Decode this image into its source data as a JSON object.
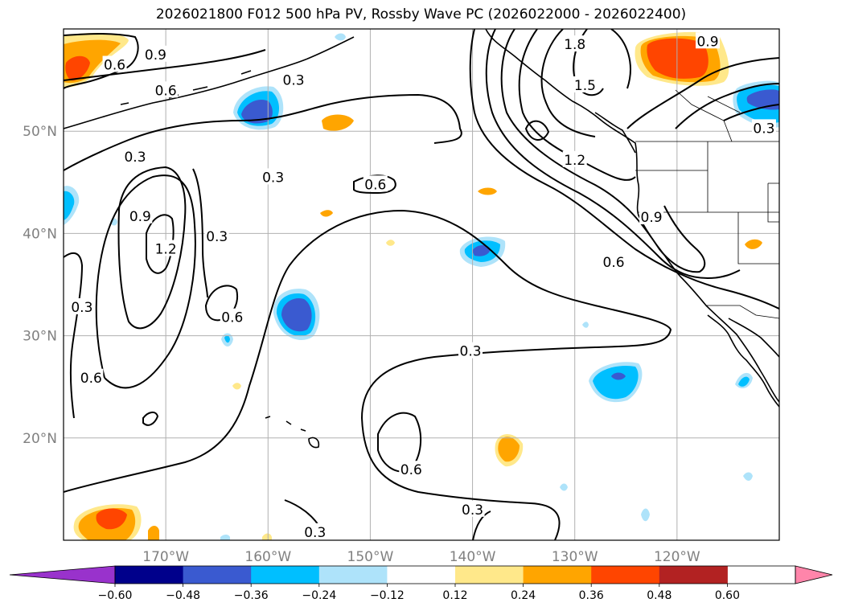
{
  "title": "2026021800 F012 500 hPa PV, Rossby Wave PC (2026022000 - 2026022400)",
  "map": {
    "lon_range": [
      -180,
      -110
    ],
    "lat_range": [
      10,
      60
    ],
    "projection": "PlateCarree",
    "gridlines": true,
    "lat_ticks": [
      {
        "value": 20,
        "label": "20°N"
      },
      {
        "value": 30,
        "label": "30°N"
      },
      {
        "value": 40,
        "label": "40°N"
      },
      {
        "value": 50,
        "label": "50°N"
      }
    ],
    "lon_ticks": [
      {
        "value": -170,
        "label": "170°W"
      },
      {
        "value": -160,
        "label": "160°W"
      },
      {
        "value": -150,
        "label": "150°W"
      },
      {
        "value": -140,
        "label": "140°W"
      },
      {
        "value": -130,
        "label": "130°W"
      },
      {
        "value": -120,
        "label": "120°W"
      }
    ],
    "contour_labels": [
      {
        "text": "0.6",
        "lon": -175,
        "lat": 56.5
      },
      {
        "text": "0.9",
        "lon": -171,
        "lat": 57.5
      },
      {
        "text": "0.6",
        "lon": -170,
        "lat": 54
      },
      {
        "text": "0.3",
        "lon": -157.5,
        "lat": 55
      },
      {
        "text": "1.8",
        "lon": -130,
        "lat": 58.5
      },
      {
        "text": "0.9",
        "lon": -117,
        "lat": 58.8
      },
      {
        "text": "1.5",
        "lon": -129,
        "lat": 54.5
      },
      {
        "text": "0.3",
        "lon": -111.5,
        "lat": 50.3
      },
      {
        "text": "0.3",
        "lon": -173,
        "lat": 47.5
      },
      {
        "text": "0.3",
        "lon": -159.5,
        "lat": 45.5
      },
      {
        "text": "0.6",
        "lon": -149.5,
        "lat": 44.8
      },
      {
        "text": "1.2",
        "lon": -130,
        "lat": 47.2
      },
      {
        "text": "0.9",
        "lon": -122.5,
        "lat": 41.6
      },
      {
        "text": "0.9",
        "lon": -172.5,
        "lat": 41.7
      },
      {
        "text": "0.3",
        "lon": -165,
        "lat": 39.7
      },
      {
        "text": "1.2",
        "lon": -170,
        "lat": 38.5
      },
      {
        "text": "0.6",
        "lon": -126.2,
        "lat": 37.2
      },
      {
        "text": "0.6",
        "lon": -163.5,
        "lat": 31.8
      },
      {
        "text": "0.3",
        "lon": -178.2,
        "lat": 32.8
      },
      {
        "text": "0.3",
        "lon": -140.2,
        "lat": 28.5
      },
      {
        "text": "0.6",
        "lon": -177.3,
        "lat": 25.9
      },
      {
        "text": "0.6",
        "lon": -146,
        "lat": 16.9
      },
      {
        "text": "0.3",
        "lon": -140,
        "lat": 13
      },
      {
        "text": "0.3",
        "lon": -155.4,
        "lat": 10.8
      }
    ]
  },
  "colorbar": {
    "ticks": [
      "−0.60",
      "−0.48",
      "−0.36",
      "−0.24",
      "−0.12",
      "0.12",
      "0.24",
      "0.36",
      "0.48",
      "0.60"
    ],
    "colors": [
      "#9932cc",
      "#00008b",
      "#3a5ad0",
      "#00bfff",
      "#aee3fa",
      "#ffffff",
      "#ffe88a",
      "#ffa500",
      "#ff4500",
      "#b22222",
      "#ff85aa"
    ]
  }
}
